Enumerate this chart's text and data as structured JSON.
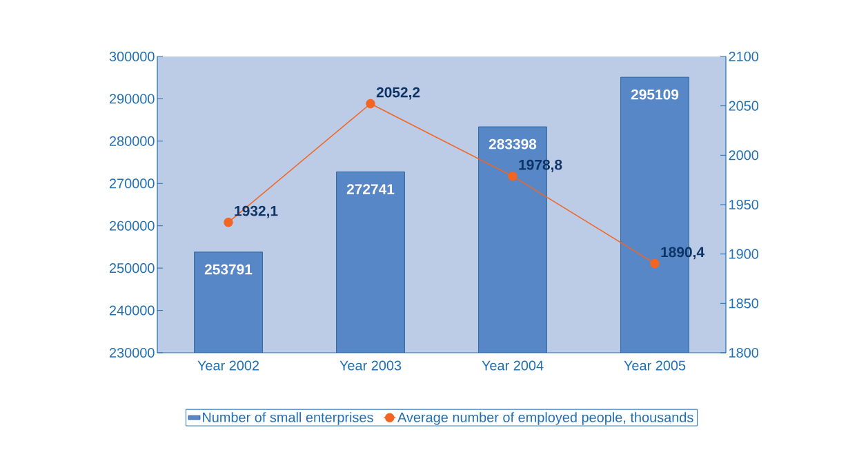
{
  "chart_data": {
    "type": "bar",
    "categories": [
      "Year 2002",
      "Year 2003",
      "Year 2004",
      "Year 2005"
    ],
    "series": [
      {
        "name": "Number of small enterprises",
        "color": "#5787c7",
        "values": [
          253791,
          272741,
          283398,
          295109
        ],
        "value_labels": [
          "253791",
          "272741",
          "283398",
          "295109"
        ]
      },
      {
        "name": "Average number of employed people, thousands",
        "type": "line",
        "axis": "y2",
        "color": "#f26522",
        "marker": "circle",
        "values": [
          1932.1,
          2052.2,
          1978.8,
          1890.4
        ],
        "value_labels": [
          "1932,1",
          "2052,2",
          "1978,8",
          "1890,4"
        ]
      }
    ],
    "ylim": [
      230000,
      300000
    ],
    "yticks": [
      230000,
      240000,
      250000,
      260000,
      270000,
      280000,
      290000,
      300000
    ],
    "y2lim": [
      1800,
      2100
    ],
    "y2ticks": [
      1800,
      1850,
      1900,
      1950,
      2000,
      2050,
      2100
    ],
    "grid": false,
    "legend": "bottom"
  }
}
